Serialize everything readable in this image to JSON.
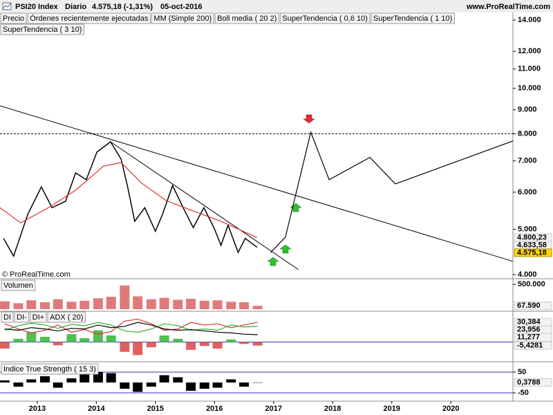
{
  "header": {
    "instrument": "PSI20 Index",
    "period": "Diario",
    "quote": "4.575,18 (-1,31%)",
    "date": "05-oct-2016",
    "site": "www.ProRealTime.com"
  },
  "chart_data": [
    {
      "type": "line",
      "log_scale": true,
      "xlim": [
        2012.37,
        2021.05
      ],
      "xticks": [
        2013,
        2014,
        2015,
        2016,
        2017,
        2018,
        2019,
        2020
      ],
      "ylim": [
        4000,
        14000
      ],
      "yticks": [
        {
          "value": 14000,
          "label": "14.000"
        },
        {
          "value": 12000,
          "label": "12.000"
        },
        {
          "value": 11000,
          "label": "11.000"
        },
        {
          "value": 10000,
          "label": "10.000"
        },
        {
          "value": 9000,
          "label": "9.000"
        },
        {
          "value": 8000,
          "label": "8.000"
        },
        {
          "value": 7000,
          "label": "7.000"
        },
        {
          "value": 6000,
          "label": "6.000"
        },
        {
          "value": 5000,
          "label": "5.000"
        },
        {
          "value": 4000,
          "label": "4.000"
        }
      ],
      "series": [
        {
          "name": "Precio",
          "color": "#000000",
          "x": [
            2012.43,
            2012.6,
            2012.84,
            2013.07,
            2013.25,
            2013.48,
            2013.65,
            2013.83,
            2014.01,
            2014.24,
            2014.42,
            2014.53,
            2014.65,
            2014.82,
            2015.0,
            2015.12,
            2015.29,
            2015.47,
            2015.64,
            2015.82,
            2015.99,
            2016.11,
            2016.23,
            2016.4,
            2016.52,
            2016.72
          ],
          "values": [
            4780,
            4380,
            5380,
            6160,
            5560,
            5740,
            6600,
            6380,
            7310,
            7690,
            7060,
            6160,
            5200,
            5560,
            4950,
            5380,
            6200,
            5560,
            5040,
            5560,
            5040,
            4620,
            5100,
            4460,
            4780,
            4575.18
          ]
        },
        {
          "name": "MM (Simple 200)",
          "color": "#e03030",
          "x": [
            2012.37,
            2012.72,
            2013.19,
            2013.65,
            2014.12,
            2014.42,
            2014.77,
            2015.18,
            2015.64,
            2016.11,
            2016.72
          ],
          "values": [
            5560,
            5160,
            5560,
            6060,
            6820,
            6940,
            6270,
            5760,
            5470,
            5200,
            4800.23
          ]
        },
        {
          "color": "#000000",
          "x": [
            2016.95,
            2017.2,
            2017.63,
            2017.94,
            2018.63,
            2019.06,
            2021.05
          ],
          "values": [
            4460,
            4810,
            8060,
            6380,
            7120,
            6250,
            7720
          ]
        }
      ],
      "indicators": [
        {
          "text": "Órdenes recientemente ejecutadas",
          "color": "#e04040"
        },
        {
          "text": "Boll media ( 20 2)",
          "color": "#0000cc"
        },
        {
          "text": "SuperTendencia ( 0,6 10)",
          "color": "#e04040"
        },
        {
          "text": "SuperTendencia ( 1 10)",
          "color": "#0000cc"
        },
        {
          "text": "SuperTendencia ( 3 10)",
          "color": "#000000"
        }
      ],
      "trend_lines": [
        {
          "x": [
            2012.37,
            2021.05
          ],
          "values": [
            9180,
            4270
          ]
        },
        {
          "x": [
            2014.24,
            2017.42
          ],
          "values": [
            7690,
            4100
          ]
        }
      ],
      "level": 8000,
      "value_tags": [
        {
          "value": 4800.23,
          "label": "4.800,23",
          "color": "#d02020"
        },
        {
          "value": 4633.58,
          "label": "4.633,58",
          "color": "#c02060"
        },
        {
          "value": 4575.18,
          "label": "4.575,18",
          "color": "#000000",
          "background": "#ffd800"
        }
      ],
      "watermark": "© ProRealTime.com"
    },
    {
      "type": "bar",
      "title": "Volumen",
      "color": "#e07a7a",
      "x": [
        2012.45,
        2012.68,
        2012.9,
        2013.13,
        2013.35,
        2013.58,
        2013.8,
        2014.03,
        2014.25,
        2014.48,
        2014.7,
        2014.93,
        2015.15,
        2015.38,
        2015.6,
        2015.83,
        2016.05,
        2016.28,
        2016.5,
        2016.73
      ],
      "values": [
        160000,
        120000,
        180000,
        140000,
        200000,
        150000,
        170000,
        220000,
        250000,
        480000,
        260000,
        200000,
        230000,
        190000,
        210000,
        170000,
        180000,
        150000,
        140000,
        67590
      ],
      "ylim": [
        0,
        560000
      ],
      "yticks": [
        {
          "value": 500000,
          "label": "500.000"
        }
      ],
      "value_tags": [
        {
          "value": 67590,
          "label": "67.590",
          "color": "#d02020"
        }
      ]
    },
    {
      "type": "combo",
      "reference": 0,
      "x": [
        2012.45,
        2012.68,
        2012.9,
        2013.13,
        2013.35,
        2013.58,
        2013.8,
        2014.03,
        2014.25,
        2014.48,
        2014.7,
        2014.93,
        2015.15,
        2015.38,
        2015.6,
        2015.83,
        2016.05,
        2016.28,
        2016.5,
        2016.73
      ],
      "ylim": [
        -27,
        45
      ],
      "series": [
        {
          "name": "DI",
          "type": "bar",
          "color": "#e06060",
          "positive_color": "#50c050",
          "values": [
            -10,
            5,
            15,
            8,
            -5,
            12,
            6,
            18,
            10,
            -15,
            -20,
            -8,
            10,
            5,
            -12,
            -6,
            -10,
            4,
            -3,
            -5.4281
          ]
        },
        {
          "name": "DI-",
          "color": "#e03030",
          "values": [
            28,
            20,
            14,
            18,
            26,
            15,
            19,
            12,
            16,
            32,
            35,
            28,
            18,
            20,
            30,
            26,
            28,
            22,
            26,
            30.384
          ]
        },
        {
          "name": "DI+",
          "color": "#30b030",
          "values": [
            18,
            25,
            29,
            26,
            21,
            27,
            25,
            30,
            26,
            17,
            15,
            20,
            28,
            25,
            18,
            20,
            18,
            26,
            23,
            23.956
          ]
        },
        {
          "name": "ADX ( 20)",
          "color": "#000000",
          "values": [
            20,
            18,
            22,
            20,
            17,
            21,
            20,
            26,
            22,
            24,
            30,
            26,
            20,
            18,
            19,
            17,
            15,
            14,
            12,
            11.277
          ]
        }
      ],
      "value_tags": [
        {
          "value": 30.384,
          "label": "30,384",
          "color": "#d02020"
        },
        {
          "value": 23.956,
          "label": "23,956",
          "color": "#30a030"
        },
        {
          "value": 11.277,
          "label": "11,277",
          "color": "#000000"
        },
        {
          "value": -5.4281,
          "label": "-5,4281",
          "color": "#d02020"
        }
      ]
    },
    {
      "type": "bar",
      "title": "Indice True Strength ( 15 3)",
      "color": "#000000",
      "x": [
        2012.45,
        2012.68,
        2012.9,
        2013.13,
        2013.35,
        2013.58,
        2013.8,
        2014.03,
        2014.25,
        2014.48,
        2014.7,
        2014.93,
        2015.15,
        2015.38,
        2015.6,
        2015.83,
        2016.05,
        2016.28,
        2016.5,
        2016.73
      ],
      "values": [
        10,
        -20,
        15,
        30,
        -25,
        20,
        40,
        50,
        45,
        -30,
        -45,
        -20,
        35,
        25,
        -40,
        -30,
        -25,
        15,
        -20,
        0.3788
      ],
      "ylim": [
        -83,
        83
      ],
      "yticks": [
        50,
        -50
      ],
      "grid": true,
      "value_tags": [
        {
          "value": 0.3788,
          "label": "0,3788",
          "color": "#000000"
        }
      ]
    }
  ]
}
